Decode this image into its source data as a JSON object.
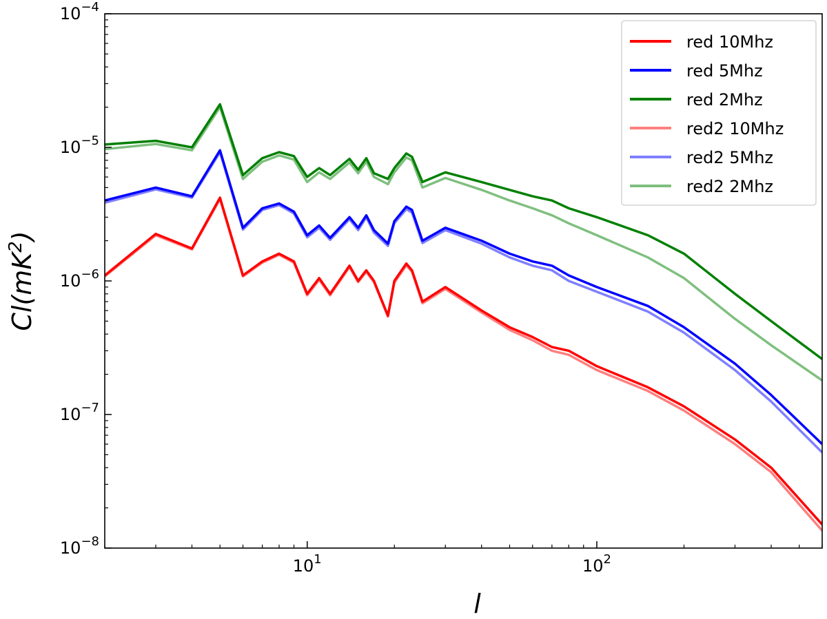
{
  "chart_data": {
    "type": "line",
    "xscale": "log",
    "yscale": "log",
    "xlim": [
      2,
      600
    ],
    "ylim": [
      1e-08,
      0.0001
    ],
    "xlabel": "l",
    "ylabel": "Cl(mK2)",
    "ylabel_parts": {
      "prefix": "Cl(mK",
      "sup": "2",
      "suffix": ")"
    },
    "x_ticks": [
      {
        "value": 10,
        "base": "10",
        "exp": "1"
      },
      {
        "value": 100,
        "base": "10",
        "exp": "2"
      }
    ],
    "y_ticks": [
      {
        "value": 1e-08,
        "base": "10",
        "exp": "−8"
      },
      {
        "value": 1e-07,
        "base": "10",
        "exp": "−7"
      },
      {
        "value": 1e-06,
        "base": "10",
        "exp": "−6"
      },
      {
        "value": 1e-05,
        "base": "10",
        "exp": "−5"
      },
      {
        "value": 0.0001,
        "base": "10",
        "exp": "−4"
      }
    ],
    "legend_position": "top-right",
    "grid": false,
    "series": [
      {
        "name": "red 10Mhz",
        "color": "#ff0000",
        "opacity": 1.0,
        "width": 3.5,
        "x": [
          2,
          3,
          4,
          5,
          6,
          7,
          8,
          9,
          10,
          11,
          12,
          14,
          15,
          16,
          17,
          19,
          20,
          22,
          23,
          25,
          30,
          40,
          50,
          60,
          70,
          80,
          100,
          150,
          200,
          300,
          400,
          600
        ],
        "y": [
          1.1e-06,
          2.25e-06,
          1.75e-06,
          4.2e-06,
          1.1e-06,
          1.4e-06,
          1.6e-06,
          1.4e-06,
          8e-07,
          1.05e-06,
          8e-07,
          1.3e-06,
          1e-06,
          1.2e-06,
          1e-06,
          5.5e-07,
          1e-06,
          1.35e-06,
          1.2e-06,
          7e-07,
          9e-07,
          6e-07,
          4.5e-07,
          3.8e-07,
          3.2e-07,
          3e-07,
          2.3e-07,
          1.6e-07,
          1.15e-07,
          6.5e-08,
          4e-08,
          1.5e-08
        ]
      },
      {
        "name": "red 5Mhz",
        "color": "#0000ff",
        "opacity": 1.0,
        "width": 3.5,
        "x": [
          2,
          3,
          4,
          5,
          6,
          7,
          8,
          9,
          10,
          11,
          12,
          14,
          15,
          16,
          17,
          19,
          20,
          22,
          23,
          25,
          30,
          40,
          50,
          60,
          70,
          80,
          100,
          150,
          200,
          300,
          400,
          600
        ],
        "y": [
          4e-06,
          5e-06,
          4.3e-06,
          9.5e-06,
          2.5e-06,
          3.5e-06,
          3.8e-06,
          3.3e-06,
          2.2e-06,
          2.6e-06,
          2.1e-06,
          3e-06,
          2.5e-06,
          3.1e-06,
          2.4e-06,
          1.9e-06,
          2.8e-06,
          3.6e-06,
          3.4e-06,
          2e-06,
          2.5e-06,
          2e-06,
          1.6e-06,
          1.4e-06,
          1.3e-06,
          1.1e-06,
          9e-07,
          6.5e-07,
          4.5e-07,
          2.4e-07,
          1.4e-07,
          6e-08
        ]
      },
      {
        "name": "red 2Mhz",
        "color": "#008000",
        "opacity": 1.0,
        "width": 3.5,
        "x": [
          2,
          3,
          4,
          5,
          6,
          7,
          8,
          9,
          10,
          11,
          12,
          14,
          15,
          16,
          17,
          19,
          20,
          22,
          23,
          25,
          30,
          40,
          50,
          60,
          70,
          80,
          100,
          150,
          200,
          300,
          400,
          600
        ],
        "y": [
          1.05e-05,
          1.12e-05,
          1e-05,
          2.1e-05,
          6.2e-06,
          8.3e-06,
          9.2e-06,
          8.6e-06,
          6e-06,
          7e-06,
          6.2e-06,
          8.2e-06,
          6.8e-06,
          8.3e-06,
          6.4e-06,
          5.8e-06,
          7e-06,
          9e-06,
          8.5e-06,
          5.5e-06,
          6.5e-06,
          5.5e-06,
          4.8e-06,
          4.3e-06,
          4e-06,
          3.5e-06,
          3e-06,
          2.2e-06,
          1.6e-06,
          8e-07,
          5e-07,
          2.6e-07
        ]
      },
      {
        "name": "red2 10Mhz",
        "color": "#ff0000",
        "opacity": 0.5,
        "width": 3.5,
        "x": [
          2,
          3,
          4,
          5,
          6,
          7,
          8,
          9,
          10,
          11,
          12,
          14,
          15,
          16,
          17,
          19,
          20,
          22,
          23,
          25,
          30,
          40,
          50,
          60,
          70,
          80,
          100,
          150,
          200,
          300,
          400,
          600
        ],
        "y": [
          1.08e-06,
          2.2e-06,
          1.72e-06,
          4.1e-06,
          1.08e-06,
          1.37e-06,
          1.57e-06,
          1.37e-06,
          7.8e-07,
          1.02e-06,
          7.8e-07,
          1.27e-06,
          9.8e-07,
          1.17e-06,
          9.8e-07,
          5.4e-07,
          9.7e-07,
          1.31e-06,
          1.17e-06,
          6.8e-07,
          8.7e-07,
          5.8e-07,
          4.3e-07,
          3.6e-07,
          3e-07,
          2.8e-07,
          2.15e-07,
          1.5e-07,
          1.07e-07,
          6e-08,
          3.7e-08,
          1.35e-08
        ]
      },
      {
        "name": "red2 5Mhz",
        "color": "#0000ff",
        "opacity": 0.5,
        "width": 3.5,
        "x": [
          2,
          3,
          4,
          5,
          6,
          7,
          8,
          9,
          10,
          11,
          12,
          14,
          15,
          16,
          17,
          19,
          20,
          22,
          23,
          25,
          30,
          40,
          50,
          60,
          70,
          80,
          100,
          150,
          200,
          300,
          400,
          600
        ],
        "y": [
          3.85e-06,
          4.85e-06,
          4.2e-06,
          9.2e-06,
          2.42e-06,
          3.4e-06,
          3.7e-06,
          3.2e-06,
          2.12e-06,
          2.5e-06,
          2.03e-06,
          2.9e-06,
          2.4e-06,
          3e-06,
          2.3e-06,
          1.83e-06,
          2.7e-06,
          3.45e-06,
          3.25e-06,
          1.92e-06,
          2.4e-06,
          1.9e-06,
          1.5e-06,
          1.3e-06,
          1.2e-06,
          1e-06,
          8.3e-07,
          5.9e-07,
          4.1e-07,
          2.15e-07,
          1.25e-07,
          5.2e-08
        ]
      },
      {
        "name": "red2 2Mhz",
        "color": "#008000",
        "opacity": 0.5,
        "width": 3.5,
        "x": [
          2,
          3,
          4,
          5,
          6,
          7,
          8,
          9,
          10,
          11,
          12,
          14,
          15,
          16,
          17,
          19,
          20,
          22,
          23,
          25,
          30,
          40,
          50,
          60,
          70,
          80,
          100,
          150,
          200,
          300,
          400,
          600
        ],
        "y": [
          9.7e-06,
          1.06e-05,
          9.5e-06,
          2e-05,
          5.8e-06,
          7.8e-06,
          8.7e-06,
          8.1e-06,
          5.5e-06,
          6.5e-06,
          5.8e-06,
          7.7e-06,
          6.4e-06,
          7.8e-06,
          6e-06,
          5.3e-06,
          6.5e-06,
          8.4e-06,
          8e-06,
          5e-06,
          5.9e-06,
          4.8e-06,
          4e-06,
          3.5e-06,
          3.1e-06,
          2.7e-06,
          2.2e-06,
          1.5e-06,
          1.05e-06,
          5.2e-07,
          3.3e-07,
          1.8e-07
        ]
      }
    ]
  }
}
